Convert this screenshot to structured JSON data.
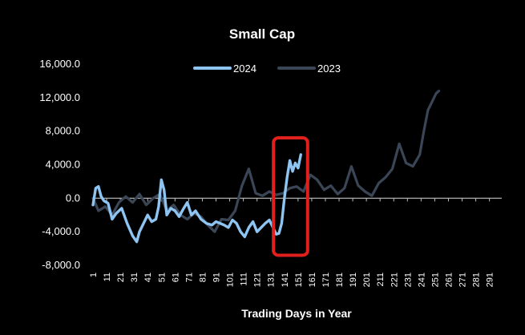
{
  "chart_data": {
    "type": "line",
    "title": "Small Cap",
    "xlabel": "Trading Days in Year",
    "ylabel": "",
    "ylim": [
      -8000,
      16000
    ],
    "xlim": [
      1,
      300
    ],
    "yticks": [
      16000,
      12000,
      8000,
      4000,
      0,
      -4000,
      -8000
    ],
    "ytick_labels": [
      "16,000.0",
      "12,000.0",
      "8,000.0",
      "4,000.0",
      "0.0",
      "-4,000.0",
      "-8,000.0"
    ],
    "xticks": [
      1,
      11,
      21,
      31,
      41,
      51,
      61,
      71,
      81,
      91,
      101,
      111,
      121,
      131,
      141,
      151,
      161,
      171,
      181,
      191,
      201,
      211,
      221,
      231,
      241,
      251,
      261,
      271,
      281,
      291
    ],
    "xtick_labels": [
      "1",
      "11",
      "21",
      "31",
      "41",
      "51",
      "61",
      "71",
      "81",
      "91",
      "101",
      "111",
      "121",
      "131",
      "141",
      "151",
      "161",
      "171",
      "181",
      "191",
      "201",
      "211",
      "221",
      "231",
      "241",
      "251",
      "261",
      "271",
      "281",
      "291"
    ],
    "grid": false,
    "legend_position": "top-center",
    "series": [
      {
        "name": "2024",
        "color": "#8ec4f2",
        "x": [
          1,
          3,
          5,
          7,
          9,
          12,
          15,
          18,
          22,
          26,
          30,
          33,
          35,
          38,
          41,
          44,
          47,
          49,
          51,
          53,
          55,
          58,
          61,
          64,
          67,
          70,
          73,
          76,
          80,
          84,
          88,
          91,
          94,
          97,
          100,
          103,
          106,
          109,
          112,
          115,
          118,
          121,
          124,
          127,
          130,
          133,
          135,
          137,
          139,
          141,
          143,
          145,
          147,
          149,
          151,
          153
        ],
        "y": [
          -800,
          1200,
          1400,
          200,
          -300,
          -600,
          -2500,
          -1800,
          -1200,
          -3000,
          -4500,
          -5200,
          -4000,
          -3000,
          -2000,
          -2800,
          -2500,
          -1000,
          2200,
          1000,
          -2000,
          -1200,
          -1500,
          -2200,
          -1300,
          -500,
          -2000,
          -1500,
          -2500,
          -3000,
          -3200,
          -2800,
          -3000,
          -3200,
          -3500,
          -2600,
          -3000,
          -4000,
          -4600,
          -3500,
          -2800,
          -4000,
          -3500,
          -3000,
          -2600,
          -3600,
          -4300,
          -4200,
          -3000,
          0,
          2500,
          4500,
          3200,
          4200,
          3600,
          5200
        ]
      },
      {
        "name": "2023",
        "color": "#3a4556",
        "x": [
          1,
          5,
          10,
          15,
          20,
          25,
          30,
          35,
          40,
          45,
          50,
          55,
          60,
          65,
          70,
          75,
          80,
          85,
          90,
          95,
          100,
          105,
          110,
          115,
          120,
          125,
          130,
          135,
          140,
          145,
          150,
          155,
          160,
          165,
          170,
          175,
          180,
          185,
          190,
          195,
          200,
          205,
          210,
          215,
          220,
          225,
          230,
          235,
          240,
          243,
          246,
          249,
          252,
          254
        ],
        "y": [
          0,
          -1500,
          -1000,
          -2000,
          -500,
          200,
          -500,
          500,
          -800,
          0,
          500,
          -1500,
          -800,
          -2000,
          -2500,
          -1800,
          -2200,
          -3200,
          -4000,
          -2500,
          -2600,
          -1500,
          1500,
          3500,
          600,
          300,
          800,
          400,
          600,
          1200,
          1400,
          800,
          2800,
          2200,
          1000,
          1500,
          500,
          1200,
          3800,
          1500,
          800,
          300,
          1800,
          2500,
          3500,
          6500,
          4200,
          3800,
          5200,
          8000,
          10500,
          11500,
          12500,
          12800
        ]
      }
    ],
    "annotations": [
      {
        "type": "highlight-box",
        "color": "#e0201c",
        "x_range": [
          133,
          158
        ],
        "y_range": [
          -6800,
          7200
        ]
      }
    ]
  }
}
